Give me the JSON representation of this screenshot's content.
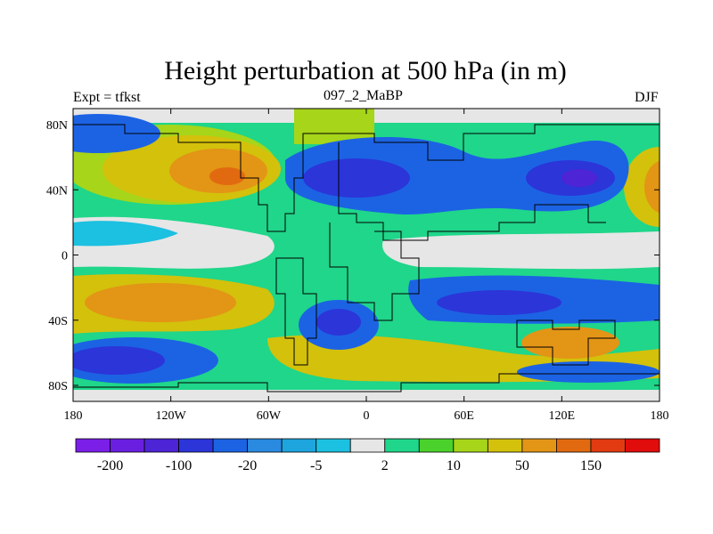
{
  "title": "Height perturbation at 500 hPa (in m)",
  "left_label": "Expt = tfkst",
  "center_label": "097_2_MaBP",
  "right_label": "DJF",
  "axes": {
    "y_ticks": [
      "80N",
      "40N",
      "0",
      "40S",
      "80S"
    ],
    "x_ticks": [
      "180",
      "120W",
      "60W",
      "0",
      "60E",
      "120E",
      "180"
    ]
  },
  "colorbar": {
    "colors": [
      "#7b1fe8",
      "#6a1fe0",
      "#4d24d6",
      "#2b35d8",
      "#1c63e4",
      "#2a8ae0",
      "#1ea5de",
      "#1cc0e0",
      "#e6e6e6",
      "#1fd68a",
      "#4bd12b",
      "#a6d519",
      "#d3c10c",
      "#e39516",
      "#e16a10",
      "#e23b12",
      "#e10c0c"
    ],
    "labels": [
      "-200",
      "-100",
      "-20",
      "-5",
      "2",
      "10",
      "50",
      "150"
    ]
  }
}
